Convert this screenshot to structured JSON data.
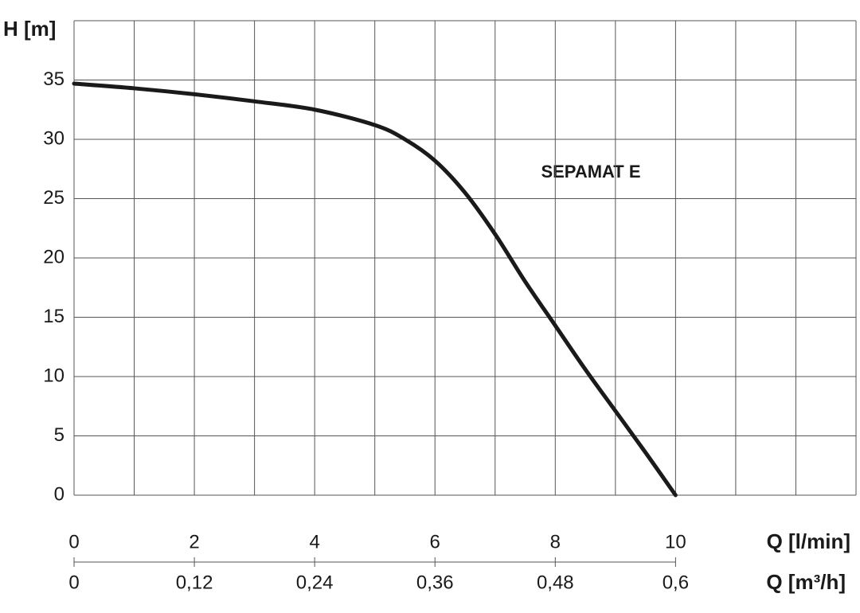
{
  "chart_data": {
    "type": "line",
    "annotation": "SEPAMAT  E",
    "ylabel": "H [m]",
    "xlabel": "Q [l/min]",
    "x2label": "Q [m³/h]",
    "x": [
      0,
      1,
      2,
      3,
      4,
      5,
      5.5,
      6,
      6.5,
      7,
      7.5,
      8,
      8.5,
      9,
      9.5,
      10
    ],
    "series": [
      {
        "color": "#1a1a1a",
        "values": [
          34.7,
          34.3,
          33.8,
          33.2,
          32.5,
          31.2,
          30.0,
          28.2,
          25.5,
          22.0,
          18.0,
          14.3,
          10.6,
          7.1,
          3.6,
          0
        ]
      }
    ],
    "xlim": [
      0,
      13
    ],
    "ylim": [
      0,
      40
    ],
    "xticks": [
      0,
      2,
      4,
      6,
      8,
      10
    ],
    "xgrid": [
      0,
      1,
      2,
      3,
      4,
      5,
      6,
      7,
      8,
      9,
      10,
      11,
      12,
      13
    ],
    "yticks": [
      0,
      5,
      10,
      15,
      20,
      25,
      30,
      35
    ],
    "ygrid": [
      0,
      5,
      10,
      15,
      20,
      25,
      30,
      35,
      40
    ],
    "x2lim": [
      0,
      0.78
    ],
    "x2ticks": [
      0,
      {
        "value": 0.12,
        "label": "0,12"
      },
      {
        "value": 0.24,
        "label": "0,24"
      },
      {
        "value": 0.36,
        "label": "0,36"
      },
      {
        "value": 0.48,
        "label": "0,48"
      },
      {
        "value": 0.6,
        "label": "0,6"
      }
    ],
    "grid": true
  }
}
